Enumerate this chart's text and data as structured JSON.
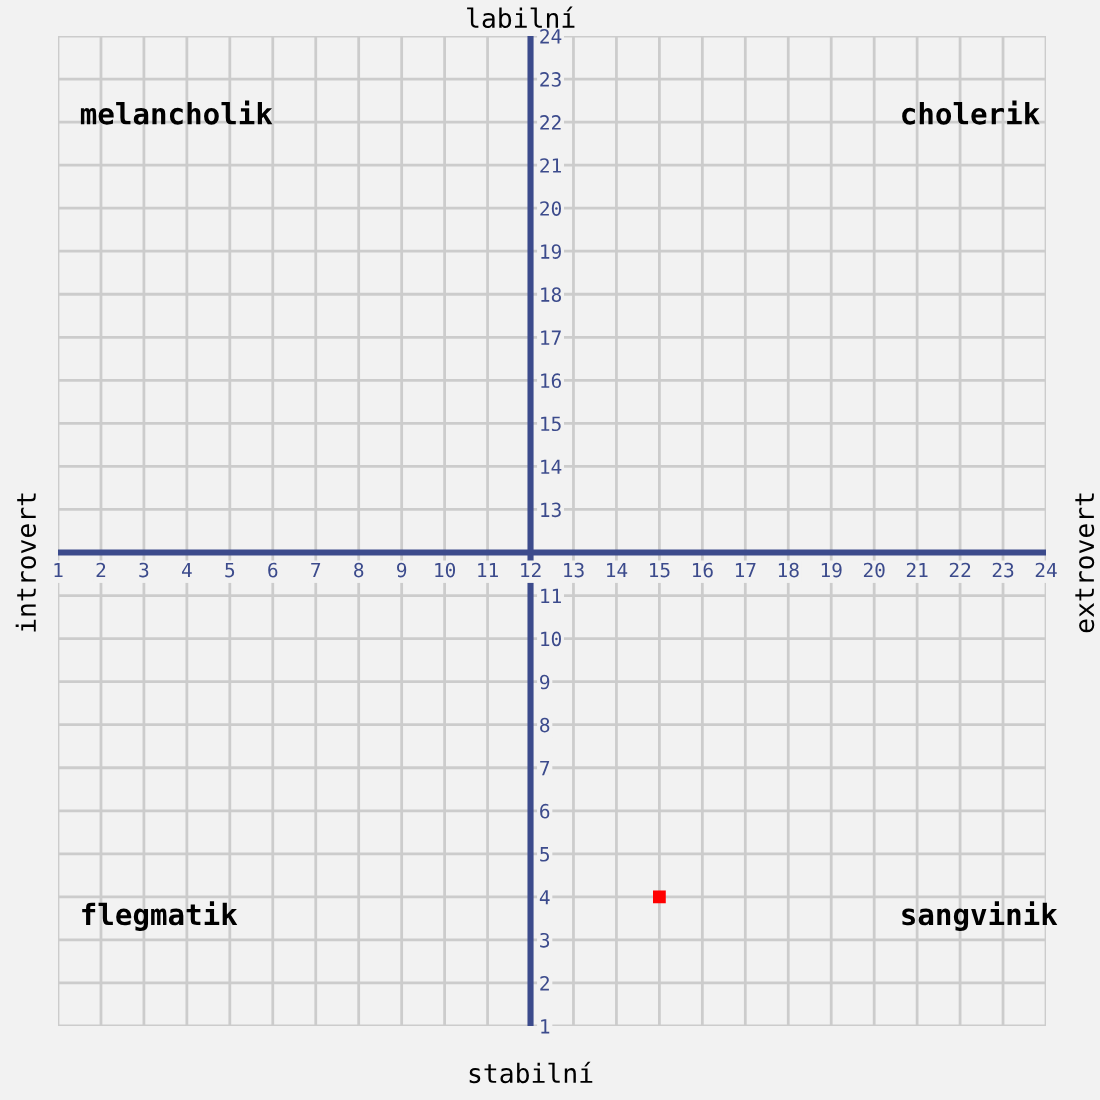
{
  "chart_data": {
    "type": "scatter",
    "title": "labilní",
    "xlabel": "stabilní",
    "ylabel": "introvert",
    "y2label": "extrovert",
    "x": [
      15
    ],
    "series": [
      {
        "color": "#ff0000",
        "values": [
          4
        ]
      }
    ],
    "marker": "square",
    "xlim": [
      1,
      24
    ],
    "ylim": [
      1,
      24
    ],
    "xticks": [
      1,
      2,
      3,
      4,
      5,
      6,
      7,
      8,
      9,
      10,
      11,
      12,
      13,
      14,
      15,
      16,
      17,
      18,
      19,
      20,
      21,
      22,
      23,
      24
    ],
    "yticks": [
      1,
      2,
      3,
      4,
      5,
      6,
      7,
      8,
      9,
      10,
      11,
      {
        "value": 12,
        "label": null
      },
      13,
      14,
      15,
      16,
      17,
      18,
      19,
      20,
      21,
      22,
      23,
      24
    ],
    "grid": true,
    "annotations": [
      "melancholik",
      "cholerik",
      "flegmatik",
      "sangvinik"
    ]
  }
}
